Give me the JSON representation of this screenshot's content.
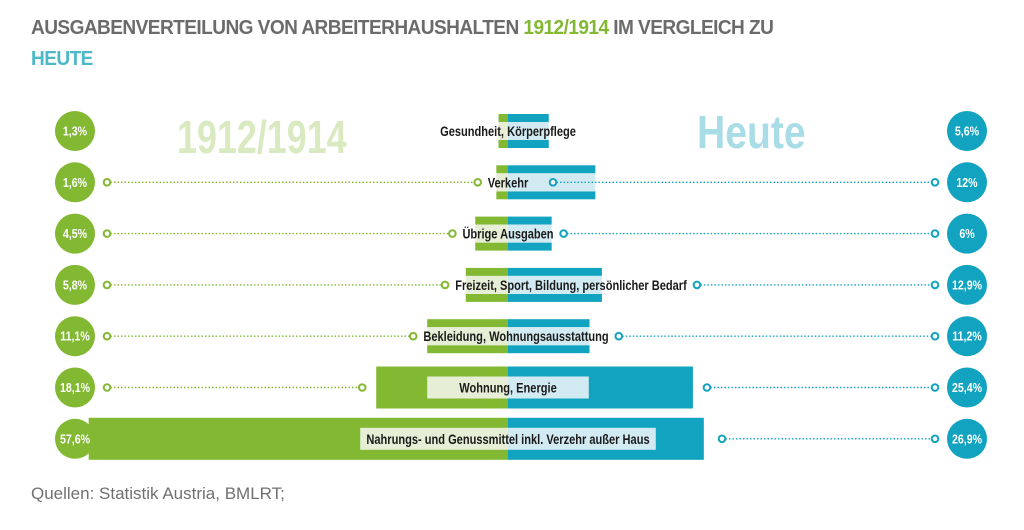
{
  "header": {
    "title_part1": "AUSGABENVERTEILUNG VON ARBEITERHAUSHALTEN ",
    "title_highlight_1912": "1912/1914",
    "title_part2": " IM VERGLEICH ZU ",
    "title_highlight_heute": "HEUTE"
  },
  "footer": {
    "source": "Quellen: Statistik Austria, BMLRT;"
  },
  "colors": {
    "green": "#82b832",
    "green_light": "#e6efd6",
    "teal": "#12a3c0",
    "teal_light": "#d2ebf3",
    "title_gray": "#6b6b6b"
  },
  "chart_data": {
    "type": "bar",
    "orientation": "horizontal-butterfly",
    "title": "AUSGABENVERTEILUNG VON ARBEITERHAUSHALTEN 1912/1914 IM VERGLEICH ZU HEUTE",
    "unit": "%",
    "series": [
      {
        "name": "1912/1914",
        "side": "left",
        "values": [
          1.3,
          1.6,
          4.5,
          5.8,
          11.1,
          18.1,
          57.6
        ],
        "labels": [
          "1,3%",
          "1,6%",
          "4,5%",
          "5,8%",
          "11,1%",
          "18,1%",
          "57,6%"
        ]
      },
      {
        "name": "Heute",
        "side": "right",
        "values": [
          5.6,
          12,
          6,
          12.9,
          11.2,
          25.4,
          26.9
        ],
        "labels": [
          "5,6%",
          "12%",
          "6%",
          "12,9%",
          "11,2%",
          "25,4%",
          "26,9%"
        ]
      }
    ],
    "categories": [
      "Gesundheit, Körperpflege",
      "Verkehr",
      "Übrige Ausgaben",
      "Freizeit, Sport, Bildung, persönlicher Bedarf",
      "Bekleidung, Wohnungsausstattung",
      "Wohnung, Energie",
      "Nahrungs- und Genussmittel inkl. Verzehr außer Haus"
    ],
    "legend": [
      "1912/1914",
      "Heute"
    ],
    "legend_placement": "top-left / top-right watermarks",
    "grid": false
  }
}
